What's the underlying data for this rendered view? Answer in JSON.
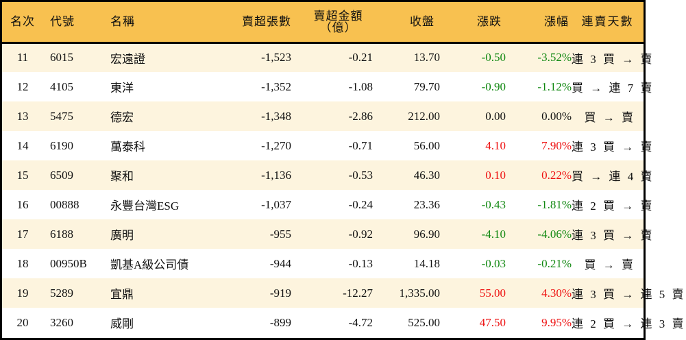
{
  "table": {
    "headers": {
      "rank": "名次",
      "code": "代號",
      "name": "名稱",
      "sell_volume": "賣超張數",
      "sell_amount_line1": "賣超金額",
      "sell_amount_line2": "（億）",
      "close": "收盤",
      "change": "漲跌",
      "change_pct": "漲幅",
      "streak": "連賣天數"
    },
    "colors": {
      "header_bg": "#F8C150",
      "row_alt_bg": "#FDF4DE",
      "up": "#EE1111",
      "down": "#118811"
    },
    "rows": [
      {
        "rank": "11",
        "code": "6015",
        "name": "宏遠證",
        "sell_volume": "-1,523",
        "sell_amount": "-0.21",
        "close": "13.70",
        "change": "-0.50",
        "change_pct": "-3.52%",
        "direction": "neg",
        "streak": "連 3 買 → 賣"
      },
      {
        "rank": "12",
        "code": "4105",
        "name": "東洋",
        "sell_volume": "-1,352",
        "sell_amount": "-1.08",
        "close": "79.70",
        "change": "-0.90",
        "change_pct": "-1.12%",
        "direction": "neg",
        "streak": "買 → 連 7 賣"
      },
      {
        "rank": "13",
        "code": "5475",
        "name": "德宏",
        "sell_volume": "-1,348",
        "sell_amount": "-2.86",
        "close": "212.00",
        "change": "0.00",
        "change_pct": "0.00%",
        "direction": "flat",
        "streak": "買 → 賣"
      },
      {
        "rank": "14",
        "code": "6190",
        "name": "萬泰科",
        "sell_volume": "-1,270",
        "sell_amount": "-0.71",
        "close": "56.00",
        "change": "4.10",
        "change_pct": "7.90%",
        "direction": "pos",
        "streak": "連 3 買 → 賣"
      },
      {
        "rank": "15",
        "code": "6509",
        "name": "聚和",
        "sell_volume": "-1,136",
        "sell_amount": "-0.53",
        "close": "46.30",
        "change": "0.10",
        "change_pct": "0.22%",
        "direction": "pos",
        "streak": "買 → 連 4 賣"
      },
      {
        "rank": "16",
        "code": "00888",
        "name": "永豐台灣ESG",
        "sell_volume": "-1,037",
        "sell_amount": "-0.24",
        "close": "23.36",
        "change": "-0.43",
        "change_pct": "-1.81%",
        "direction": "neg",
        "streak": "連 2 買 → 賣"
      },
      {
        "rank": "17",
        "code": "6188",
        "name": "廣明",
        "sell_volume": "-955",
        "sell_amount": "-0.92",
        "close": "96.90",
        "change": "-4.10",
        "change_pct": "-4.06%",
        "direction": "neg",
        "streak": "連 3 買 → 賣"
      },
      {
        "rank": "18",
        "code": "00950B",
        "name": "凱基A級公司債",
        "sell_volume": "-944",
        "sell_amount": "-0.13",
        "close": "14.18",
        "change": "-0.03",
        "change_pct": "-0.21%",
        "direction": "neg",
        "streak": "買 → 賣"
      },
      {
        "rank": "19",
        "code": "5289",
        "name": "宜鼎",
        "sell_volume": "-919",
        "sell_amount": "-12.27",
        "close": "1,335.00",
        "change": "55.00",
        "change_pct": "4.30%",
        "direction": "pos",
        "streak": "連 3 買 → 連 5 賣"
      },
      {
        "rank": "20",
        "code": "3260",
        "name": "威剛",
        "sell_volume": "-899",
        "sell_amount": "-4.72",
        "close": "525.00",
        "change": "47.50",
        "change_pct": "9.95%",
        "direction": "pos",
        "streak": "連 2 買 → 連 3 賣"
      }
    ]
  }
}
